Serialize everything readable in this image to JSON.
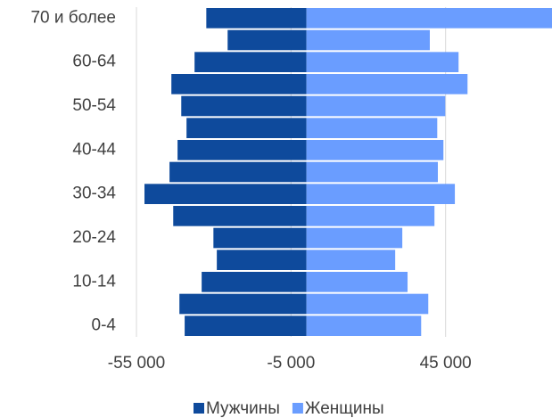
{
  "chart_data": {
    "type": "bar",
    "orientation": "horizontal",
    "stacked": true,
    "categories": [
      "0-4",
      null,
      "10-14",
      null,
      "20-24",
      null,
      "30-34",
      null,
      "40-44",
      null,
      "50-54",
      null,
      "60-64",
      null,
      "70 и более"
    ],
    "series": [
      {
        "name": "Мужчины",
        "color": "#0e4a9c",
        "values": [
          -39400,
          -41100,
          -33900,
          -29000,
          -30100,
          -43100,
          -52400,
          -44300,
          -41700,
          -38800,
          -40500,
          -43700,
          -36200,
          -25500,
          -32400
        ]
      },
      {
        "name": "Женщины",
        "color": "#6a9dff",
        "values": [
          37100,
          39400,
          32700,
          28700,
          31000,
          41400,
          48000,
          42500,
          44300,
          42300,
          44900,
          52100,
          49200,
          39900,
          79500
        ]
      }
    ],
    "xlim": [
      -55000,
      80000
    ],
    "xticks": [
      {
        "value": -55000,
        "label": "-55 000"
      },
      {
        "value": -5000,
        "label": "-5 000"
      },
      {
        "value": 45000,
        "label": "45 000"
      }
    ],
    "grid": true,
    "legend": "bottom"
  }
}
